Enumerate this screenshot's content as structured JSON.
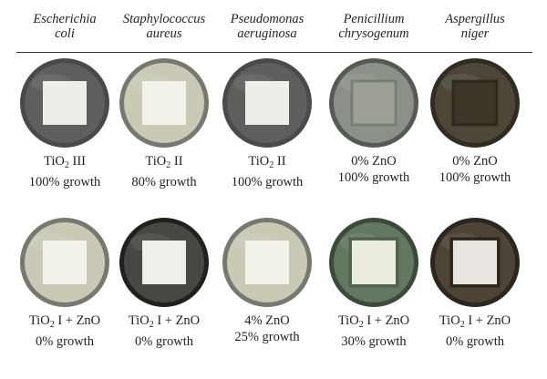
{
  "columns": [
    {
      "organism": [
        "Escherichia",
        "coli"
      ],
      "top": {
        "base": "TiO",
        "sub": "2",
        "rest": " III",
        "growth": "100% growth",
        "style": "clear"
      },
      "bottom": {
        "base": "TiO",
        "sub": "2",
        "rest": " I + ZnO",
        "growth": "0% growth",
        "style": "pale"
      }
    },
    {
      "organism": [
        "Staphylococcus",
        "aureus"
      ],
      "top": {
        "base": "TiO",
        "sub": "2",
        "rest": " II",
        "growth": "80% growth",
        "style": "pale"
      },
      "bottom": {
        "base": "TiO",
        "sub": "2",
        "rest": " I + ZnO",
        "growth": "0% growth",
        "style": "dark"
      }
    },
    {
      "organism": [
        "Pseudomonas",
        "aeruginosa"
      ],
      "top": {
        "base": "TiO",
        "sub": "2",
        "rest": " II",
        "growth": "100% growth",
        "style": "clear"
      },
      "bottom": {
        "base": "",
        "sub": "",
        "rest": "4% ZnO",
        "growth": "25% growth",
        "style": "pale"
      }
    },
    {
      "organism": [
        "Penicillium",
        "chrysogenum"
      ],
      "top": {
        "base": "",
        "sub": "",
        "rest": "0% ZnO",
        "growth": "100% growth",
        "style": "mold"
      },
      "bottom": {
        "base": "TiO",
        "sub": "2",
        "rest": " I + ZnO",
        "growth": "30% growth",
        "style": "green"
      }
    },
    {
      "organism": [
        "Aspergillus",
        "niger"
      ],
      "top": {
        "base": "",
        "sub": "",
        "rest": "0% ZnO",
        "growth": "100% growth",
        "style": "black"
      },
      "bottom": {
        "base": "TiO",
        "sub": "2",
        "rest": " I + ZnO",
        "growth": "0% growth",
        "style": "blackRing"
      }
    }
  ],
  "dish_styles": {
    "clear": {
      "rim": "#4a4a4a",
      "agar": "#5e5f5c",
      "square": "#eeeee9"
    },
    "pale": {
      "rim": "#777970",
      "agar": "#c9c9b6",
      "square": "#f2f1ea"
    },
    "dark": {
      "rim": "#1f211e",
      "agar": "#464843",
      "square": "#efefe9"
    },
    "mold": {
      "rim": "#555a52",
      "agar": "#8b9188",
      "square": "#9ca095"
    },
    "green": {
      "rim": "#3b4a3a",
      "agar": "#637761",
      "square": "#e9ecdf"
    },
    "black": {
      "rim": "#302c22",
      "agar": "#4d473a",
      "square": "#3c3628"
    },
    "blackRing": {
      "rim": "#2b2620",
      "agar": "#4e4436",
      "square": "#e8e4df"
    }
  }
}
